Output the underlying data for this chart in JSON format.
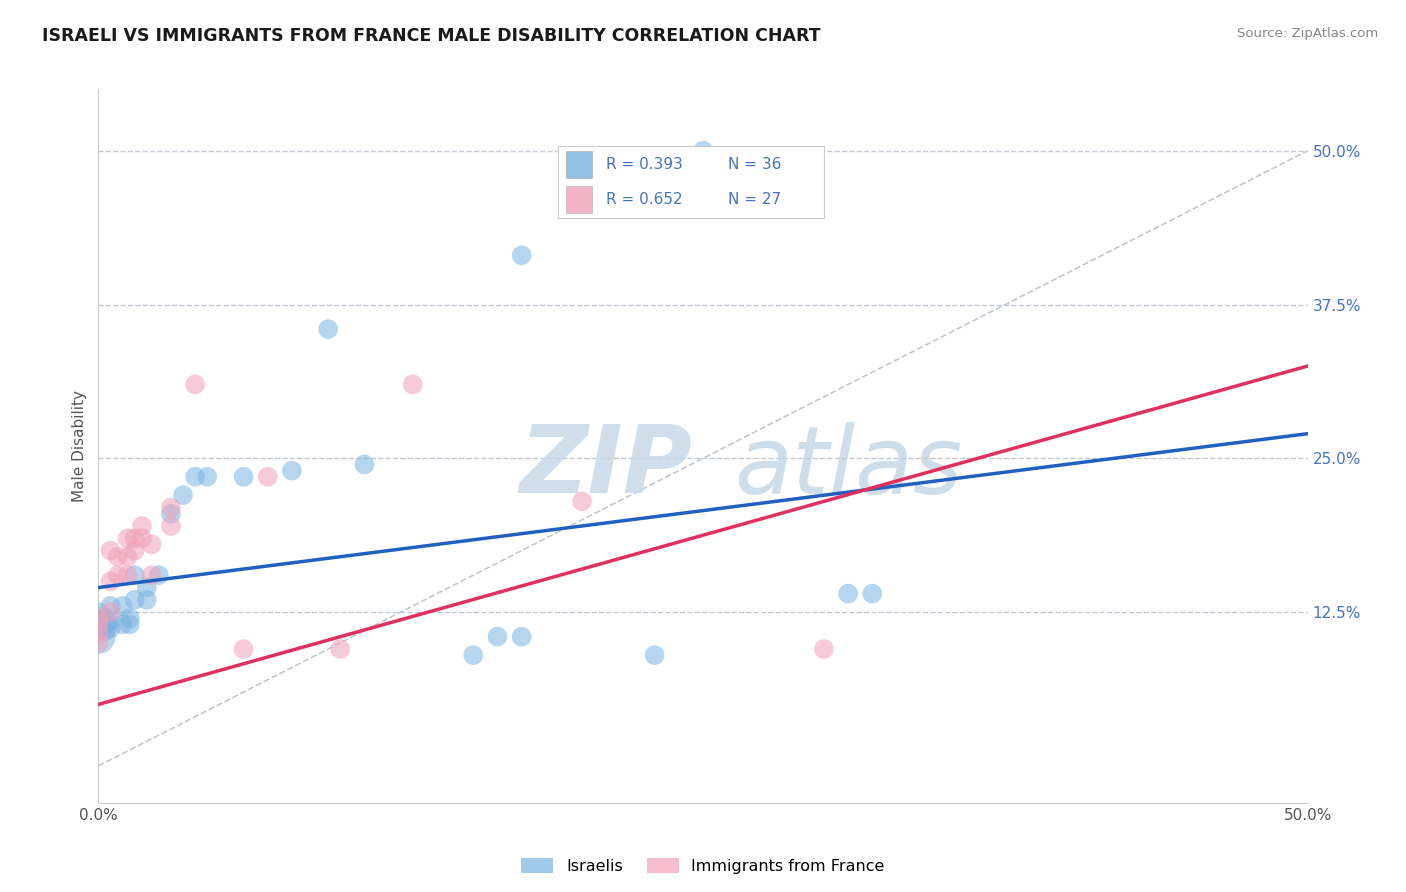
{
  "title": "ISRAELI VS IMMIGRANTS FROM FRANCE MALE DISABILITY CORRELATION CHART",
  "source": "Source: ZipAtlas.com",
  "ylabel": "Male Disability",
  "right_ytick_vals": [
    0.125,
    0.25,
    0.375,
    0.5
  ],
  "right_ytick_labels": [
    "12.5%",
    "25.0%",
    "37.5%",
    "50.0%"
  ],
  "xmin": 0.0,
  "xmax": 0.5,
  "ymin": -0.03,
  "ymax": 0.55,
  "israeli_color": "#7ab3e0",
  "france_color": "#f0a0b8",
  "trend_israeli_color": "#2060c0",
  "trend_france_color": "#e03060",
  "dashed_line_color": "#c0c8d4",
  "trend_isr_start": 0.145,
  "trend_isr_end": 0.27,
  "trend_fra_start": 0.05,
  "trend_fra_end": 0.325,
  "israeli_points": [
    [
      0.0,
      0.105
    ],
    [
      0.0,
      0.11
    ],
    [
      0.0,
      0.115
    ],
    [
      0.0,
      0.12
    ],
    [
      0.0,
      0.125
    ],
    [
      0.003,
      0.11
    ],
    [
      0.003,
      0.115
    ],
    [
      0.003,
      0.12
    ],
    [
      0.005,
      0.112
    ],
    [
      0.005,
      0.118
    ],
    [
      0.005,
      0.13
    ],
    [
      0.01,
      0.13
    ],
    [
      0.01,
      0.115
    ],
    [
      0.013,
      0.115
    ],
    [
      0.013,
      0.12
    ],
    [
      0.015,
      0.135
    ],
    [
      0.015,
      0.155
    ],
    [
      0.02,
      0.145
    ],
    [
      0.02,
      0.135
    ],
    [
      0.025,
      0.155
    ],
    [
      0.03,
      0.205
    ],
    [
      0.035,
      0.22
    ],
    [
      0.04,
      0.235
    ],
    [
      0.045,
      0.235
    ],
    [
      0.06,
      0.235
    ],
    [
      0.08,
      0.24
    ],
    [
      0.095,
      0.355
    ],
    [
      0.11,
      0.245
    ],
    [
      0.165,
      0.105
    ],
    [
      0.175,
      0.105
    ],
    [
      0.155,
      0.09
    ],
    [
      0.23,
      0.09
    ],
    [
      0.25,
      0.5
    ],
    [
      0.31,
      0.14
    ],
    [
      0.32,
      0.14
    ],
    [
      0.175,
      0.415
    ]
  ],
  "israeli_sizes": [
    600,
    200,
    200,
    200,
    200,
    200,
    200,
    200,
    200,
    200,
    200,
    200,
    200,
    200,
    200,
    200,
    200,
    200,
    200,
    200,
    200,
    200,
    200,
    200,
    200,
    200,
    200,
    200,
    200,
    200,
    200,
    200,
    200,
    200,
    200,
    200
  ],
  "france_points": [
    [
      0.0,
      0.1
    ],
    [
      0.0,
      0.108
    ],
    [
      0.0,
      0.115
    ],
    [
      0.0,
      0.12
    ],
    [
      0.005,
      0.125
    ],
    [
      0.005,
      0.15
    ],
    [
      0.005,
      0.175
    ],
    [
      0.008,
      0.155
    ],
    [
      0.008,
      0.17
    ],
    [
      0.012,
      0.155
    ],
    [
      0.012,
      0.17
    ],
    [
      0.012,
      0.185
    ],
    [
      0.015,
      0.175
    ],
    [
      0.015,
      0.185
    ],
    [
      0.018,
      0.185
    ],
    [
      0.018,
      0.195
    ],
    [
      0.022,
      0.155
    ],
    [
      0.022,
      0.18
    ],
    [
      0.03,
      0.195
    ],
    [
      0.03,
      0.21
    ],
    [
      0.04,
      0.31
    ],
    [
      0.06,
      0.095
    ],
    [
      0.07,
      0.235
    ],
    [
      0.1,
      0.095
    ],
    [
      0.13,
      0.31
    ],
    [
      0.2,
      0.215
    ],
    [
      0.3,
      0.095
    ]
  ],
  "france_sizes": [
    200,
    200,
    200,
    200,
    200,
    200,
    200,
    200,
    200,
    200,
    200,
    200,
    200,
    200,
    200,
    200,
    200,
    200,
    200,
    200,
    200,
    200,
    200,
    200,
    200,
    200,
    200
  ]
}
